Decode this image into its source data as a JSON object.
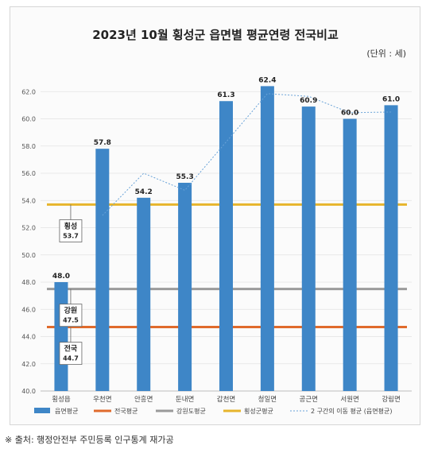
{
  "chart_data": {
    "type": "bar",
    "title": "2023년 10월 횡성군 읍면별 평균연령 전국비교",
    "unit_label": "(단위 : 세)",
    "categories": [
      "횡성읍",
      "우천면",
      "안흥면",
      "둔내면",
      "갑천면",
      "청일면",
      "공근면",
      "서원면",
      "강림면"
    ],
    "series": [
      {
        "name": "읍면평균",
        "values": [
          48.0,
          57.8,
          54.2,
          55.3,
          61.3,
          62.4,
          60.9,
          60.0,
          61.0
        ],
        "color": "#3e86c7"
      }
    ],
    "value_labels": [
      "48.0",
      "57.8",
      "54.2",
      "55.3",
      "61.3",
      "62.4",
      "60.9",
      "60.0",
      "61.0"
    ],
    "highlight_label_index": 5,
    "highlight_label_color": "#d23a3a",
    "reference_lines": [
      {
        "name": "전국평균",
        "value": 44.7,
        "color": "#e06b2c",
        "callout_name": "전국",
        "callout_value": "44.7"
      },
      {
        "name": "강원도평균",
        "value": 47.5,
        "color": "#9a9a9a",
        "callout_name": "강원",
        "callout_value": "47.5"
      },
      {
        "name": "횡성군평균",
        "value": 53.7,
        "color": "#e7b52c",
        "callout_name": "횡성",
        "callout_value": "53.7"
      }
    ],
    "moving_average": {
      "name": "2 구간의 이동 평균 (읍면평균)",
      "color": "#6aa3d8"
    },
    "ylim": [
      40.0,
      64.0
    ],
    "yticks": [
      "40.0",
      "42.0",
      "44.0",
      "46.0",
      "48.0",
      "50.0",
      "52.0",
      "54.0",
      "56.0",
      "58.0",
      "60.0",
      "62.0"
    ],
    "grid": true,
    "legend_position": "bottom"
  },
  "source_note": "※ 출처: 행정안전부 주민등록 인구통계 재가공"
}
